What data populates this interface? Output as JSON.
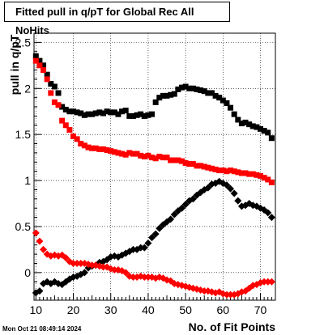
{
  "chart_data": {
    "type": "scatter",
    "title": "Fitted pull in q/pT for Global Rec All NoHits",
    "xlabel": "No. of Fit Points",
    "ylabel": "pull in q/pT",
    "xlim": [
      9.5,
      74
    ],
    "ylim": [
      -0.3,
      2.6
    ],
    "x_ticks": [
      10,
      20,
      30,
      40,
      50,
      60,
      70
    ],
    "y_ticks": [
      0,
      0.5,
      1,
      1.5,
      2,
      2.5
    ],
    "x_tick_labels": [
      "10",
      "20",
      "30",
      "40",
      "50",
      "60",
      "70"
    ],
    "y_tick_labels": [
      "0",
      "0.5",
      "1",
      "1.5",
      "2",
      "2.5"
    ],
    "grid": true,
    "legend": "none",
    "series": [
      {
        "color": "#000000",
        "marker": "square",
        "x": [
          10,
          11,
          12,
          13,
          14,
          15,
          16,
          17,
          18,
          19,
          20,
          21,
          22,
          23,
          24,
          25,
          26,
          27,
          28,
          29,
          30,
          31,
          32,
          33,
          34,
          35,
          36,
          37,
          38,
          39,
          40,
          41,
          42,
          43,
          44,
          45,
          46,
          47,
          48,
          49,
          50,
          51,
          52,
          53,
          54,
          55,
          56,
          57,
          58,
          59,
          60,
          61,
          62,
          63,
          64,
          65,
          66,
          67,
          68,
          69,
          70,
          71,
          72,
          73
        ],
        "y": [
          2.35,
          2.3,
          2.25,
          2.15,
          2.05,
          2.02,
          1.95,
          1.8,
          1.77,
          1.75,
          1.75,
          1.74,
          1.73,
          1.71,
          1.72,
          1.72,
          1.73,
          1.74,
          1.73,
          1.75,
          1.74,
          1.74,
          1.72,
          1.75,
          1.76,
          1.7,
          1.7,
          1.71,
          1.72,
          1.7,
          1.71,
          1.72,
          1.85,
          1.9,
          1.92,
          1.92,
          1.93,
          1.94,
          1.99,
          2.01,
          2.02,
          2.0,
          2.0,
          1.99,
          1.98,
          1.97,
          1.95,
          1.95,
          1.92,
          1.9,
          1.87,
          1.84,
          1.79,
          1.72,
          1.66,
          1.62,
          1.63,
          1.61,
          1.59,
          1.58,
          1.56,
          1.54,
          1.52,
          1.46
        ]
      },
      {
        "color": "#ff0000",
        "marker": "square",
        "x": [
          10,
          11,
          12,
          13,
          14,
          15,
          16,
          17,
          18,
          19,
          20,
          21,
          22,
          23,
          24,
          25,
          26,
          27,
          28,
          29,
          30,
          31,
          32,
          33,
          34,
          35,
          36,
          37,
          38,
          39,
          40,
          41,
          42,
          43,
          44,
          45,
          46,
          47,
          48,
          49,
          50,
          51,
          52,
          53,
          54,
          55,
          56,
          57,
          58,
          59,
          60,
          61,
          62,
          63,
          64,
          65,
          66,
          67,
          68,
          69,
          70,
          71,
          72,
          73
        ],
        "y": [
          2.3,
          2.25,
          2.2,
          2.1,
          1.95,
          1.85,
          1.82,
          1.65,
          1.6,
          1.55,
          1.48,
          1.45,
          1.4,
          1.38,
          1.36,
          1.35,
          1.35,
          1.34,
          1.34,
          1.33,
          1.32,
          1.31,
          1.3,
          1.29,
          1.28,
          1.3,
          1.29,
          1.29,
          1.27,
          1.26,
          1.27,
          1.25,
          1.24,
          1.26,
          1.25,
          1.25,
          1.22,
          1.22,
          1.22,
          1.21,
          1.19,
          1.18,
          1.18,
          1.16,
          1.16,
          1.15,
          1.14,
          1.13,
          1.12,
          1.11,
          1.11,
          1.1,
          1.11,
          1.1,
          1.09,
          1.08,
          1.08,
          1.07,
          1.07,
          1.06,
          1.05,
          1.03,
          1.01,
          0.98
        ]
      },
      {
        "color": "#000000",
        "marker": "diamond",
        "x": [
          10,
          11,
          12,
          13,
          14,
          15,
          16,
          17,
          18,
          19,
          20,
          21,
          22,
          23,
          24,
          25,
          26,
          27,
          28,
          29,
          30,
          31,
          32,
          33,
          34,
          35,
          36,
          37,
          38,
          39,
          40,
          41,
          42,
          43,
          44,
          45,
          46,
          47,
          48,
          49,
          50,
          51,
          52,
          53,
          54,
          55,
          56,
          57,
          58,
          59,
          60,
          61,
          62,
          63,
          64,
          65,
          66,
          67,
          68,
          69,
          70,
          71,
          72,
          73
        ],
        "y": [
          -0.22,
          -0.2,
          -0.12,
          -0.1,
          -0.12,
          -0.1,
          -0.12,
          -0.13,
          -0.1,
          -0.07,
          -0.05,
          -0.04,
          -0.02,
          0.0,
          0.05,
          0.07,
          0.08,
          0.11,
          0.12,
          0.14,
          0.17,
          0.18,
          0.17,
          0.19,
          0.21,
          0.23,
          0.25,
          0.25,
          0.27,
          0.27,
          0.32,
          0.38,
          0.42,
          0.48,
          0.52,
          0.55,
          0.58,
          0.63,
          0.67,
          0.7,
          0.74,
          0.78,
          0.8,
          0.84,
          0.87,
          0.9,
          0.92,
          0.96,
          0.97,
          0.99,
          0.97,
          0.95,
          0.91,
          0.86,
          0.78,
          0.72,
          0.73,
          0.75,
          0.73,
          0.72,
          0.7,
          0.68,
          0.65,
          0.6
        ]
      },
      {
        "color": "#ff0000",
        "marker": "diamond",
        "x": [
          10,
          11,
          12,
          13,
          14,
          15,
          16,
          17,
          18,
          19,
          20,
          21,
          22,
          23,
          24,
          25,
          26,
          27,
          28,
          29,
          30,
          31,
          32,
          33,
          34,
          35,
          36,
          37,
          38,
          39,
          40,
          41,
          42,
          43,
          44,
          45,
          46,
          47,
          48,
          49,
          50,
          51,
          52,
          53,
          54,
          55,
          56,
          57,
          58,
          59,
          60,
          61,
          62,
          63,
          64,
          65,
          66,
          67,
          68,
          69,
          70,
          71,
          72,
          73
        ],
        "y": [
          0.43,
          0.34,
          0.25,
          0.2,
          0.18,
          0.19,
          0.18,
          0.19,
          0.16,
          0.12,
          0.1,
          0.1,
          0.1,
          0.1,
          0.09,
          0.08,
          0.08,
          0.07,
          0.06,
          0.06,
          0.04,
          0.03,
          0.03,
          0.02,
          0.0,
          -0.04,
          -0.05,
          -0.05,
          -0.04,
          -0.05,
          -0.05,
          -0.05,
          -0.06,
          -0.05,
          -0.06,
          -0.08,
          -0.09,
          -0.12,
          -0.13,
          -0.14,
          -0.15,
          -0.16,
          -0.17,
          -0.18,
          -0.19,
          -0.2,
          -0.2,
          -0.21,
          -0.22,
          -0.21,
          -0.23,
          -0.24,
          -0.24,
          -0.24,
          -0.23,
          -0.21,
          -0.2,
          -0.17,
          -0.14,
          -0.13,
          -0.11,
          -0.1,
          -0.1,
          -0.1
        ]
      }
    ]
  },
  "timestamp": "Mon Oct 21 08:49:14 2024"
}
